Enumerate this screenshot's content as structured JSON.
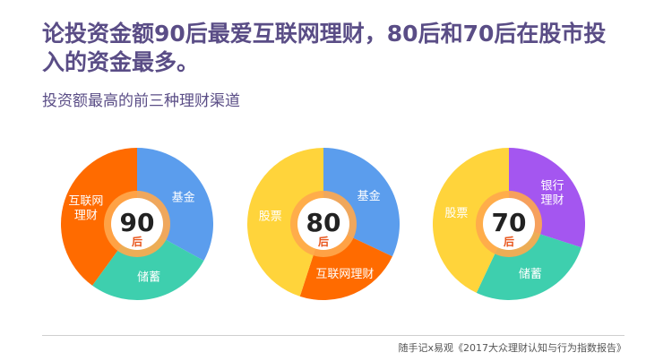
{
  "title": "论投资金额90后最爱互联网理财，80后和70后在股市投入的资金最多。",
  "subtitle": "投资额最高的前三种理财渠道",
  "chart_data": [
    {
      "type": "pie",
      "center": {
        "number": "90",
        "unit": "后"
      },
      "slices": [
        {
          "label": "基金",
          "value": 33,
          "color": "#5b9ded"
        },
        {
          "label": "储蓄",
          "value": 27,
          "color": "#3ecfae"
        },
        {
          "label": "互联网\n理财",
          "value": 40,
          "color": "#ff6b00"
        }
      ]
    },
    {
      "type": "pie",
      "center": {
        "number": "80",
        "unit": "后"
      },
      "slices": [
        {
          "label": "基金",
          "value": 32,
          "color": "#5b9ded"
        },
        {
          "label": "互联网理财",
          "value": 23,
          "color": "#ff6b00"
        },
        {
          "label": "股票",
          "value": 45,
          "color": "#ffd43b"
        }
      ]
    },
    {
      "type": "pie",
      "center": {
        "number": "70",
        "unit": "后"
      },
      "slices": [
        {
          "label": "银行\n理财",
          "value": 30,
          "color": "#a456f0"
        },
        {
          "label": "储蓄",
          "value": 27,
          "color": "#3ecfae"
        },
        {
          "label": "股票",
          "value": 43,
          "color": "#ffd43b"
        }
      ]
    }
  ],
  "center_style": {
    "ring_color": "#ffa94d",
    "inner_color": "#ffffff",
    "number_color": "#222222",
    "unit_color": "#e8551b"
  },
  "source": "随手记x易观《2017大众理财认知与行为指数报告》"
}
